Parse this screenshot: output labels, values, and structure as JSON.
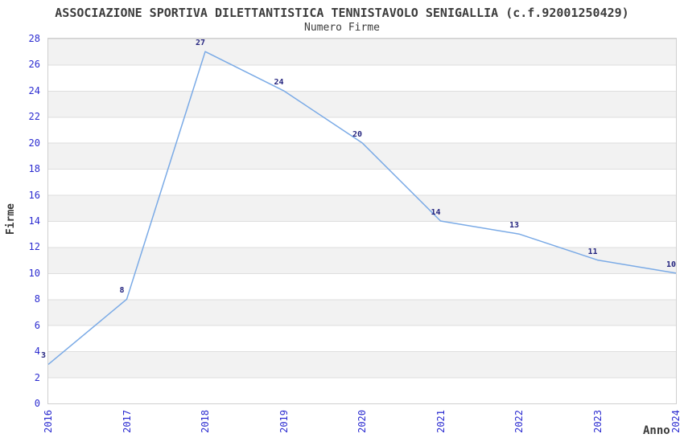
{
  "header": {
    "title": "ASSOCIAZIONE SPORTIVA DILETTANTISTICA TENNISTAVOLO SENIGALLIA (c.f.92001250429)",
    "subtitle": "Numero Firme"
  },
  "chart_data": {
    "type": "line",
    "x": [
      "2016",
      "2017",
      "2018",
      "2019",
      "2020",
      "2021",
      "2022",
      "2023",
      "2024"
    ],
    "series": [
      {
        "name": "Numero Firme",
        "values": [
          3,
          8,
          27,
          24,
          20,
          14,
          13,
          11,
          10
        ]
      }
    ],
    "data_labels": [
      "3",
      "8",
      "27",
      "24",
      "20",
      "14",
      "13",
      "11",
      "10"
    ],
    "xlabel": "Anno",
    "ylabel": "Firme",
    "ylim": [
      0,
      28
    ],
    "ytick_step": 2,
    "yticks": [
      0,
      2,
      4,
      6,
      8,
      10,
      12,
      14,
      16,
      18,
      20,
      22,
      24,
      26,
      28
    ],
    "grid": "horizontal-alternating-bands",
    "legend_position": "none",
    "colors": {
      "line": "#7aaae6",
      "axis_tick_label": "#2b2bd0",
      "data_label": "#262680",
      "band_alt": "#f2f2f2",
      "band_base": "#ffffff",
      "plot_border": "#cfcfcf",
      "heading_text": "#3c3c3c"
    }
  }
}
